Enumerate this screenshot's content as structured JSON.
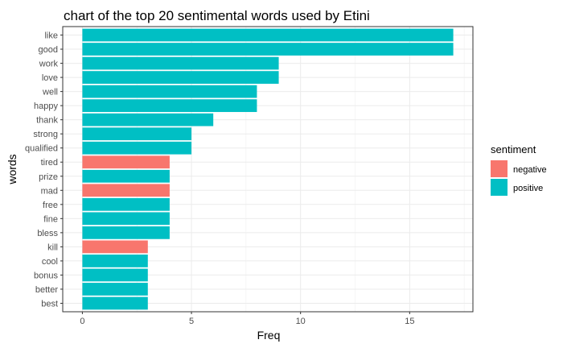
{
  "chart_data": {
    "type": "bar",
    "orientation": "horizontal",
    "title": "chart of the top 20 sentimental words used by Etini",
    "xlabel": "Freq",
    "ylabel": "words",
    "xlim": [
      -0.9,
      17.9
    ],
    "xticks": [
      0,
      5,
      10,
      15
    ],
    "grid": true,
    "legend": {
      "title": "sentiment",
      "position": "right",
      "entries": [
        {
          "label": "negative",
          "color": "#F8766D"
        },
        {
          "label": "positive",
          "color": "#00BFC4"
        }
      ]
    },
    "categories": [
      "like",
      "good",
      "work",
      "love",
      "well",
      "happy",
      "thank",
      "strong",
      "qualified",
      "tired",
      "prize",
      "mad",
      "free",
      "fine",
      "bless",
      "kill",
      "cool",
      "bonus",
      "better",
      "best"
    ],
    "values": [
      17,
      17,
      9,
      9,
      8,
      8,
      6,
      5,
      5,
      4,
      4,
      4,
      4,
      4,
      4,
      3,
      3,
      3,
      3,
      3
    ],
    "sentiment": [
      "positive",
      "positive",
      "positive",
      "positive",
      "positive",
      "positive",
      "positive",
      "positive",
      "positive",
      "negative",
      "positive",
      "negative",
      "positive",
      "positive",
      "positive",
      "negative",
      "positive",
      "positive",
      "positive",
      "positive"
    ]
  }
}
